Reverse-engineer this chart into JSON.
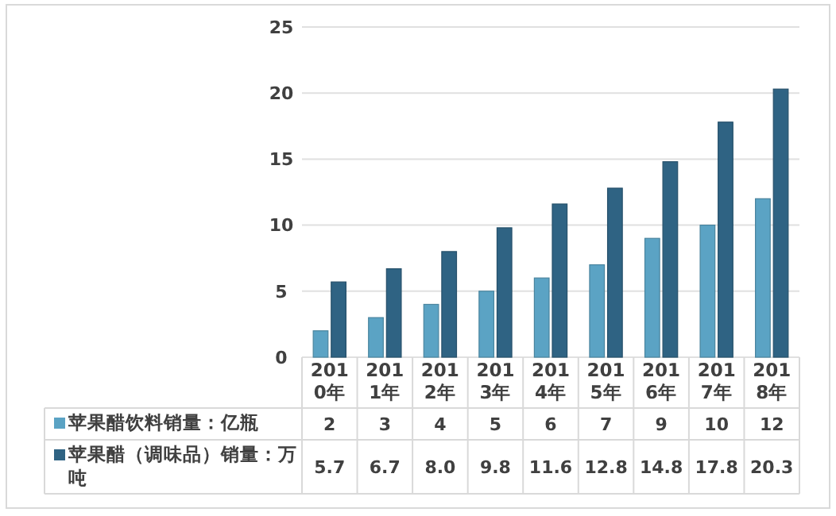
{
  "chart_data": {
    "type": "bar",
    "categories": [
      "2010年",
      "2011年",
      "2012年",
      "2013年",
      "2014年",
      "2015年",
      "2016年",
      "2017年",
      "2018年"
    ],
    "series": [
      {
        "name": "苹果醋饮料销量：亿瓶",
        "color": "#5ba3c4",
        "values": [
          2,
          3,
          4,
          5,
          6,
          7,
          9,
          10,
          12
        ],
        "value_labels": [
          "2",
          "3",
          "4",
          "5",
          "6",
          "7",
          "9",
          "10",
          "12"
        ]
      },
      {
        "name": "苹果醋（调味品）销量：万吨",
        "color": "#2f6383",
        "values": [
          5.7,
          6.7,
          8.0,
          9.8,
          11.6,
          12.8,
          14.8,
          17.8,
          20.3
        ],
        "value_labels": [
          "5.7",
          "6.7",
          "8.0",
          "9.8",
          "11.6",
          "12.8",
          "14.8",
          "17.8",
          "20.3"
        ]
      }
    ],
    "ylim": [
      0,
      25
    ],
    "yticks": [
      0,
      5,
      10,
      15,
      20,
      25
    ],
    "grid": "y",
    "legend": "bottom"
  }
}
